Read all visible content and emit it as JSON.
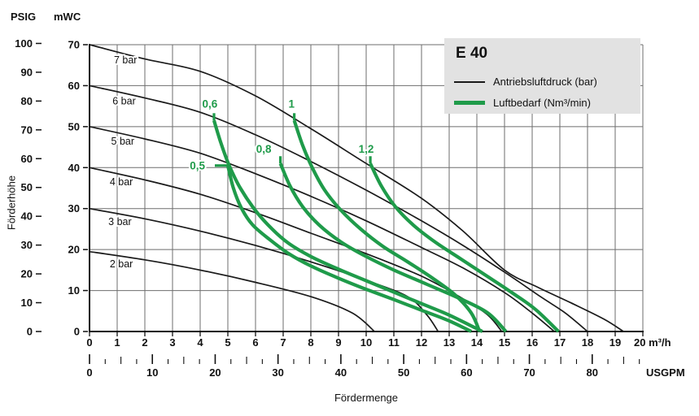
{
  "chart_data": {
    "type": "line",
    "title": "E 40",
    "legend": [
      {
        "label": "Antriebsluftdruck (bar)",
        "color": "#1a1a1a",
        "style": "thin"
      },
      {
        "label": "Luftbedarf (Nm³/min)",
        "color": "#1f9b4a",
        "style": "thick"
      }
    ],
    "x_axis": {
      "label": "Fördermenge",
      "primary_unit": "m³/h",
      "secondary_unit": "USGPM",
      "xlim_m3h": [
        0,
        20
      ],
      "tick_labels_m3h": [
        "0",
        "1",
        "2",
        "3",
        "4",
        "5",
        "6",
        "7",
        "8",
        "9",
        "10",
        "11",
        "12",
        "13",
        "14",
        "15",
        "16",
        "17",
        "18",
        "19",
        "20 m³/h"
      ],
      "tick_labels_usgpm": [
        "0",
        "10",
        "20",
        "30",
        "40",
        "50",
        "60",
        "70",
        "80"
      ]
    },
    "y_axis": {
      "label": "Förderhöhe",
      "primary_unit": "mWC",
      "secondary_unit": "PSIG",
      "ylim_mwc": [
        0,
        70
      ],
      "tick_labels_mwc": [
        "70",
        "60",
        "50",
        "40",
        "30",
        "20",
        "10",
        "0"
      ],
      "tick_labels_psig": [
        "100",
        "90",
        "80",
        "70",
        "60",
        "50",
        "40",
        "30",
        "20",
        "10",
        "0"
      ]
    },
    "grid": {
      "vertical_step_m3h": 1,
      "horizontal_step_mwc": 10
    },
    "pressure_curves": [
      {
        "label": "7 bar",
        "label_pos": [
          1.3,
          66.2
        ],
        "points": [
          [
            0,
            70
          ],
          [
            2,
            66.5
          ],
          [
            4,
            63.5
          ],
          [
            6,
            57.5
          ],
          [
            8,
            49.5
          ],
          [
            10,
            41
          ],
          [
            12,
            32.5
          ],
          [
            13.5,
            24.5
          ],
          [
            15,
            15
          ],
          [
            16.2,
            10.8
          ],
          [
            17.4,
            7
          ],
          [
            18.6,
            3
          ],
          [
            19.3,
            0
          ]
        ]
      },
      {
        "label": "6 bar",
        "label_pos": [
          1.25,
          56.2
        ],
        "points": [
          [
            0,
            60
          ],
          [
            2,
            57
          ],
          [
            4,
            53.5
          ],
          [
            6,
            48
          ],
          [
            8,
            41.5
          ],
          [
            10,
            34.5
          ],
          [
            12,
            27
          ],
          [
            13.5,
            21
          ],
          [
            15,
            14.5
          ],
          [
            16.3,
            8.5
          ],
          [
            17.2,
            4.5
          ],
          [
            18,
            0
          ]
        ]
      },
      {
        "label": "5 bar",
        "label_pos": [
          1.2,
          46.4
        ],
        "points": [
          [
            0,
            50
          ],
          [
            2,
            47
          ],
          [
            4,
            43.5
          ],
          [
            6,
            38.5
          ],
          [
            8,
            33
          ],
          [
            10,
            27
          ],
          [
            12,
            20.5
          ],
          [
            13.5,
            15.5
          ],
          [
            15,
            9.5
          ],
          [
            16,
            4.5
          ],
          [
            16.8,
            0
          ]
        ]
      },
      {
        "label": "4 bar",
        "label_pos": [
          1.15,
          36.5
        ],
        "points": [
          [
            0,
            40
          ],
          [
            2,
            37
          ],
          [
            4,
            33.5
          ],
          [
            6,
            29
          ],
          [
            8,
            24
          ],
          [
            10,
            19
          ],
          [
            12,
            13.5
          ],
          [
            13.5,
            8
          ],
          [
            14.4,
            4
          ],
          [
            14.9,
            0
          ]
        ]
      },
      {
        "label": "3 bar",
        "label_pos": [
          1.1,
          26.8
        ],
        "points": [
          [
            0,
            30
          ],
          [
            2,
            27.5
          ],
          [
            4,
            24.5
          ],
          [
            6,
            21
          ],
          [
            8,
            17
          ],
          [
            10,
            12.5
          ],
          [
            11.5,
            8.5
          ],
          [
            12.2,
            4
          ],
          [
            12.6,
            0
          ]
        ]
      },
      {
        "label": "2 bar",
        "label_pos": [
          1.15,
          16.5
        ],
        "points": [
          [
            0,
            19.5
          ],
          [
            2,
            17.5
          ],
          [
            4,
            15
          ],
          [
            6,
            12
          ],
          [
            8,
            8.5
          ],
          [
            9.5,
            4.5
          ],
          [
            10.3,
            0
          ]
        ]
      }
    ],
    "air_curves": [
      {
        "label": "0,5",
        "label_pos": [
          3.9,
          39.6
        ],
        "label_side": "left",
        "points": [
          [
            5.0,
            40.5
          ],
          [
            5.2,
            35
          ],
          [
            5.5,
            30
          ],
          [
            5.9,
            26
          ],
          [
            6.5,
            22.5
          ],
          [
            7.2,
            19
          ],
          [
            8,
            16
          ],
          [
            9,
            13
          ],
          [
            10,
            10.3
          ],
          [
            11,
            7.8
          ],
          [
            12,
            5.2
          ],
          [
            13,
            2.6
          ],
          [
            13.8,
            0
          ]
        ]
      },
      {
        "label": "0,6",
        "label_pos": [
          4.35,
          54.6
        ],
        "label_side": "top",
        "points": [
          [
            4.5,
            51.5
          ],
          [
            4.75,
            46
          ],
          [
            5.05,
            40.5
          ],
          [
            5.45,
            35
          ],
          [
            6,
            29.5
          ],
          [
            6.6,
            25
          ],
          [
            7.2,
            21.5
          ],
          [
            8,
            18.3
          ],
          [
            9,
            15.2
          ],
          [
            10,
            12.4
          ],
          [
            11,
            9.6
          ],
          [
            12,
            6.8
          ],
          [
            13,
            4
          ],
          [
            14.2,
            0
          ]
        ]
      },
      {
        "label": "0,8",
        "label_pos": [
          6.3,
          43.6
        ],
        "label_side": "top",
        "points": [
          [
            6.9,
            41
          ],
          [
            7.25,
            35.5
          ],
          [
            7.7,
            30.5
          ],
          [
            8.3,
            26
          ],
          [
            9.1,
            21.8
          ],
          [
            10,
            18.3
          ],
          [
            11,
            15
          ],
          [
            12.2,
            11.5
          ],
          [
            13.4,
            8
          ],
          [
            14.4,
            4.5
          ],
          [
            15.05,
            0
          ]
        ]
      },
      {
        "label": "1",
        "label_pos": [
          7.3,
          54.6
        ],
        "label_side": "top",
        "points": [
          [
            7.4,
            51.5
          ],
          [
            7.7,
            45.5
          ],
          [
            8.05,
            40
          ],
          [
            8.5,
            34.5
          ],
          [
            9.1,
            29.5
          ],
          [
            9.8,
            25
          ],
          [
            10.6,
            20.8
          ],
          [
            11.5,
            17
          ],
          [
            12.4,
            13
          ],
          [
            13.2,
            9
          ],
          [
            13.8,
            4.5
          ],
          [
            14.1,
            0
          ]
        ]
      },
      {
        "label": "1,2",
        "label_pos": [
          10.0,
          43.6
        ],
        "label_side": "top",
        "points": [
          [
            10.15,
            41
          ],
          [
            10.55,
            35.5
          ],
          [
            11.05,
            30.5
          ],
          [
            11.7,
            26
          ],
          [
            12.5,
            21.8
          ],
          [
            13.4,
            17.8
          ],
          [
            14.3,
            13.8
          ],
          [
            15.2,
            9.8
          ],
          [
            16.1,
            5.5
          ],
          [
            16.95,
            0
          ]
        ]
      }
    ]
  }
}
